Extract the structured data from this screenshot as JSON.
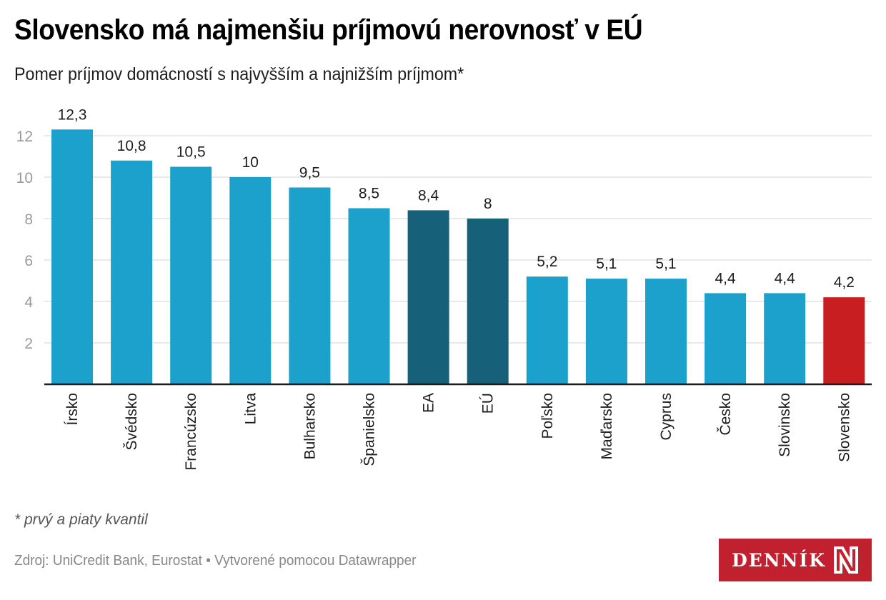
{
  "header": {
    "title": "Slovensko má najmenšiu príjmovú nerovnosť v EÚ",
    "subtitle": "Pomer príjmov domácností s najvyšším a najnižším príjmom*"
  },
  "footer": {
    "note": "* prvý a piaty kvantil",
    "source": "Zdroj: UniCredit Bank, Eurostat • Vytvorené pomocou Datawrapper",
    "logo_text": "DENNÍK",
    "logo_icon": "n-logo-icon"
  },
  "colors": {
    "default": "#1ba1cc",
    "aggregate": "#17607a",
    "highlight": "#c91e21",
    "gridline": "#e2e2e2",
    "axis": "#1d1d1d",
    "logo_bg": "#c1202f"
  },
  "chart_data": {
    "type": "bar",
    "title": "Slovensko má najmenšiu príjmovú nerovnosť v EÚ",
    "subtitle": "Pomer príjmov domácností s najvyšším a najnižším príjmom*",
    "xlabel": "",
    "ylabel": "",
    "categories": [
      "Írsko",
      "Švédsko",
      "Francúzsko",
      "Litva",
      "Bulharsko",
      "Španielsko",
      "EA",
      "EÚ",
      "Poľsko",
      "Maďarsko",
      "Cyprus",
      "Česko",
      "Slovinsko",
      "Slovensko"
    ],
    "values": [
      12.3,
      10.8,
      10.5,
      10,
      9.5,
      8.5,
      8.4,
      8,
      5.2,
      5.1,
      5.1,
      4.4,
      4.4,
      4.2
    ],
    "value_labels": [
      "12,3",
      "10,8",
      "10,5",
      "10",
      "9,5",
      "8,5",
      "8,4",
      "8",
      "5,2",
      "5,1",
      "5,1",
      "4,4",
      "4,4",
      "4,2"
    ],
    "bar_kind": [
      "default",
      "default",
      "default",
      "default",
      "default",
      "default",
      "aggregate",
      "aggregate",
      "default",
      "default",
      "default",
      "default",
      "default",
      "highlight"
    ],
    "ylim": [
      0,
      12.3
    ],
    "yticks": [
      2,
      4,
      6,
      8,
      10,
      12
    ],
    "grid": true,
    "legend": "none",
    "label_orientation": "vertical"
  }
}
